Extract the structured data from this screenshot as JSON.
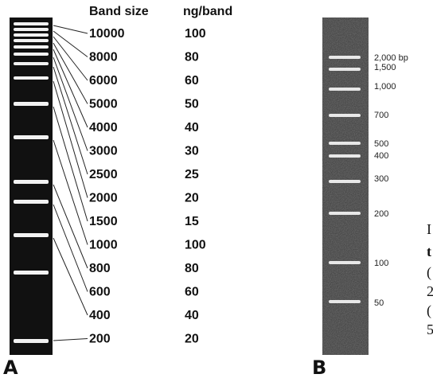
{
  "panel_a": {
    "label": "A",
    "headers": [
      "Band size",
      "ng/band"
    ],
    "rows": [
      [
        "10000",
        "100"
      ],
      [
        "8000",
        "80"
      ],
      [
        "6000",
        "60"
      ],
      [
        "5000",
        "50"
      ],
      [
        "4000",
        "40"
      ],
      [
        "3000",
        "30"
      ],
      [
        "2500",
        "25"
      ],
      [
        "2000",
        "20"
      ],
      [
        "1500",
        "15"
      ],
      [
        "1000",
        "100"
      ],
      [
        "800",
        "80"
      ],
      [
        "600",
        "60"
      ],
      [
        "400",
        "40"
      ],
      [
        "200",
        "20"
      ]
    ]
  },
  "panel_b": {
    "label": "B",
    "bands": [
      "2,000 bp",
      "1,500",
      "1,000",
      "700",
      "500",
      "400",
      "300",
      "200",
      "100",
      "50"
    ]
  },
  "cut_text": [
    "I",
    "t",
    "(",
    "2",
    "(",
    "5"
  ]
}
